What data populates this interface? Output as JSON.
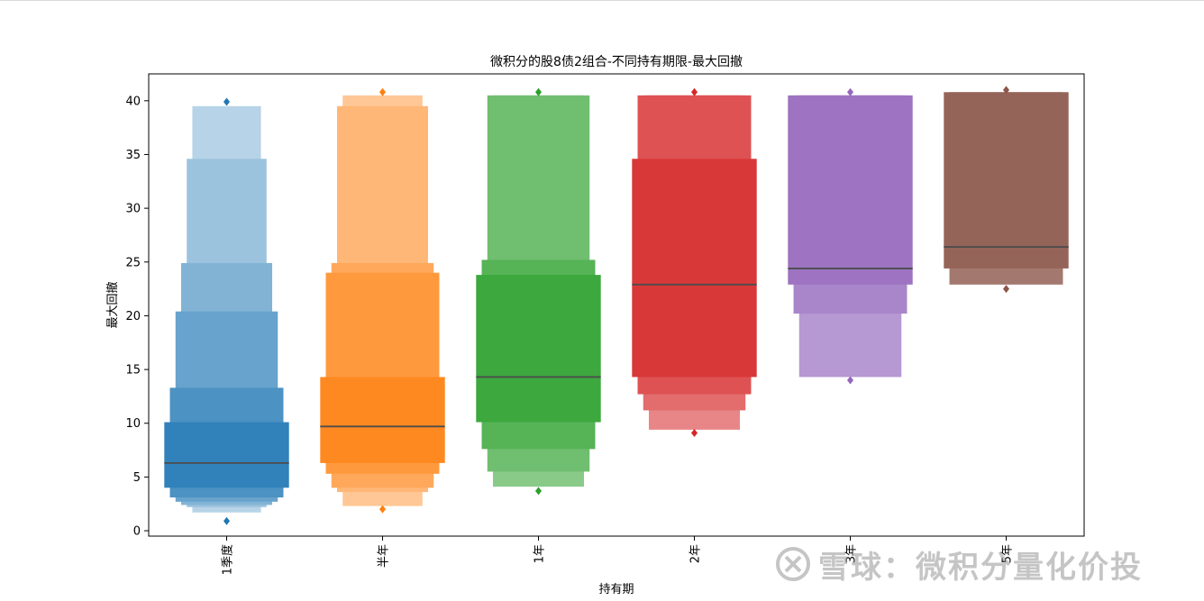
{
  "chart_data": {
    "type": "boxen",
    "title": "微积分的股8债2组合-不同持有期限-最大回撤",
    "xlabel": "持有期",
    "ylabel": "最大回撤",
    "ylim": [
      -0.5,
      42.5
    ],
    "yticks": [
      0,
      5,
      10,
      15,
      20,
      25,
      30,
      35,
      40
    ],
    "categories": [
      "1季度",
      "半年",
      "1年",
      "2年",
      "3年",
      "5年"
    ],
    "series": [
      {
        "category": "1季度",
        "color": "#1f77b4",
        "median": 6.3,
        "boxes": [
          [
            4.0,
            10.1
          ],
          [
            3.1,
            13.3
          ],
          [
            2.7,
            20.4
          ],
          [
            2.4,
            24.9
          ],
          [
            2.2,
            34.6
          ],
          [
            1.7,
            39.5
          ]
        ],
        "outliers": [
          39.9,
          0.9
        ]
      },
      {
        "category": "半年",
        "color": "#ff7f0e",
        "median": 9.7,
        "boxes": [
          [
            6.3,
            14.3
          ],
          [
            5.3,
            24.0
          ],
          [
            4.0,
            24.9
          ],
          [
            3.6,
            39.5
          ],
          [
            2.3,
            40.5
          ]
        ],
        "outliers": [
          40.8,
          2.0
        ]
      },
      {
        "category": "1年",
        "color": "#2ca02c",
        "median": 14.3,
        "boxes": [
          [
            10.1,
            23.8
          ],
          [
            7.6,
            25.2
          ],
          [
            5.5,
            40.5
          ],
          [
            4.1,
            40.5
          ]
        ],
        "outliers": [
          40.8,
          3.7
        ]
      },
      {
        "category": "2年",
        "color": "#d62728",
        "median": 22.9,
        "boxes": [
          [
            14.3,
            34.6
          ],
          [
            12.7,
            40.5
          ],
          [
            11.2,
            40.5
          ],
          [
            9.4,
            40.5
          ]
        ],
        "outliers": [
          40.8,
          9.1
        ]
      },
      {
        "category": "3年",
        "color": "#9467bd",
        "median": 24.4,
        "boxes": [
          [
            22.9,
            40.5
          ],
          [
            20.2,
            40.5
          ],
          [
            14.3,
            40.5
          ]
        ],
        "outliers": [
          40.8,
          14.0
        ]
      },
      {
        "category": "5年",
        "color": "#8c564b",
        "median": 26.4,
        "boxes": [
          [
            24.4,
            40.8
          ],
          [
            22.9,
            40.8
          ]
        ],
        "outliers": [
          41.0,
          22.5
        ]
      }
    ]
  },
  "watermark": {
    "text": "雪球：微积分量化价投"
  }
}
